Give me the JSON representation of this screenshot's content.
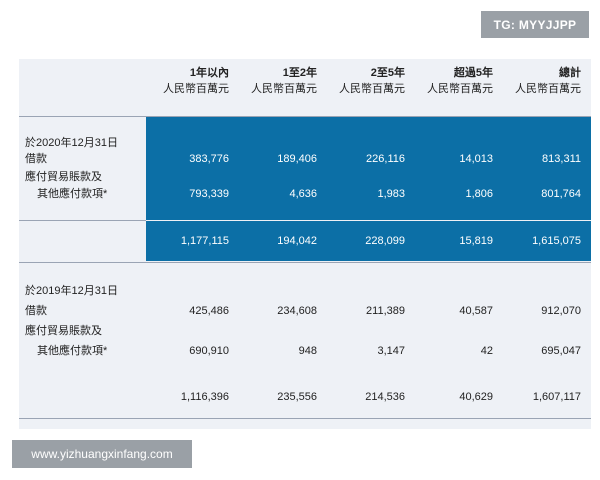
{
  "watermarks": {
    "top": "TG: MYYJJPP",
    "bottom": "www.yizhuangxinfang.com"
  },
  "header": {
    "columns": [
      {
        "period": "1年以內",
        "unit": "人民幣百萬元"
      },
      {
        "period": "1至2年",
        "unit": "人民幣百萬元"
      },
      {
        "period": "2至5年",
        "unit": "人民幣百萬元"
      },
      {
        "period": "超過5年",
        "unit": "人民幣百萬元"
      },
      {
        "period": "總計",
        "unit": "人民幣百萬元"
      }
    ]
  },
  "sections": [
    {
      "date": "於2020年12月31日",
      "rows": [
        {
          "label": "借款",
          "values": [
            "383,776",
            "189,406",
            "226,116",
            "14,013",
            "813,311"
          ]
        },
        {
          "label": "應付貿易賬款及",
          "label2": "其他應付款項*",
          "values": [
            "793,339",
            "4,636",
            "1,983",
            "1,806",
            "801,764"
          ]
        }
      ],
      "totals": [
        "1,177,115",
        "194,042",
        "228,099",
        "15,819",
        "1,615,075"
      ]
    },
    {
      "date": "於2019年12月31日",
      "rows": [
        {
          "label": "借款",
          "values": [
            "425,486",
            "234,608",
            "211,389",
            "40,587",
            "912,070"
          ]
        },
        {
          "label": "應付貿易賬款及",
          "label2": "其他應付款項*",
          "values": [
            "690,910",
            "948",
            "3,147",
            "42",
            "695,047"
          ]
        }
      ],
      "totals": [
        "1,116,396",
        "235,556",
        "214,536",
        "40,629",
        "1,607,117"
      ]
    }
  ],
  "colors": {
    "highlight": "#0c6fa6",
    "sheet": "#eef1f6",
    "watermark": "#9aa0a6"
  }
}
